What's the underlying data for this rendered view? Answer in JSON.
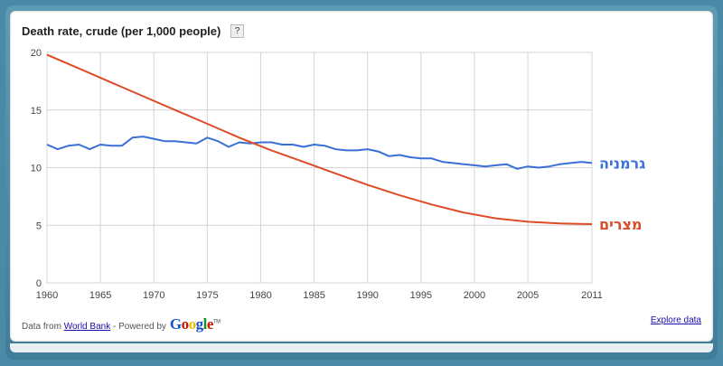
{
  "title": "Death rate, crude (per 1,000 people)",
  "help_label": "?",
  "footer": {
    "data_from": "Data from",
    "source_link": "World Bank",
    "powered_by": "- Powered by",
    "explore_link": "Explore data"
  },
  "chart_data": {
    "type": "line",
    "xlim": [
      1960,
      2011
    ],
    "ylim": [
      0,
      20
    ],
    "x_ticks": [
      1960,
      1965,
      1970,
      1975,
      1980,
      1985,
      1990,
      1995,
      2000,
      2005,
      2011
    ],
    "y_ticks": [
      0,
      5,
      10,
      15,
      20
    ],
    "grid": true,
    "legend": "series labels at right end of lines",
    "series": [
      {
        "name": "גרמניה",
        "color": "#3a6fd8",
        "x": [
          1960,
          1961,
          1962,
          1963,
          1964,
          1965,
          1966,
          1967,
          1968,
          1969,
          1970,
          1971,
          1972,
          1973,
          1974,
          1975,
          1976,
          1977,
          1978,
          1979,
          1980,
          1981,
          1982,
          1983,
          1984,
          1985,
          1986,
          1987,
          1988,
          1989,
          1990,
          1991,
          1992,
          1993,
          1994,
          1995,
          1996,
          1997,
          1998,
          1999,
          2000,
          2001,
          2002,
          2003,
          2004,
          2005,
          2006,
          2007,
          2008,
          2009,
          2010,
          2011
        ],
        "y": [
          12.0,
          11.6,
          11.9,
          12.0,
          11.6,
          12.0,
          11.9,
          11.9,
          12.6,
          12.7,
          12.5,
          12.3,
          12.3,
          12.2,
          12.1,
          12.6,
          12.3,
          11.8,
          12.2,
          12.1,
          12.2,
          12.2,
          12.0,
          12.0,
          11.8,
          12.0,
          11.9,
          11.6,
          11.5,
          11.5,
          11.6,
          11.4,
          11.0,
          11.1,
          10.9,
          10.8,
          10.8,
          10.5,
          10.4,
          10.3,
          10.2,
          10.1,
          10.2,
          10.3,
          9.9,
          10.1,
          10.0,
          10.1,
          10.3,
          10.4,
          10.5,
          10.4
        ]
      },
      {
        "name": "מצרים",
        "color": "#dd4b27",
        "x": [
          1960,
          1963,
          1966,
          1969,
          1972,
          1975,
          1978,
          1981,
          1984,
          1987,
          1990,
          1993,
          1996,
          1999,
          2002,
          2005,
          2008,
          2011
        ],
        "y": [
          19.8,
          18.6,
          17.4,
          16.2,
          15.0,
          13.8,
          12.6,
          11.5,
          10.5,
          9.5,
          8.5,
          7.6,
          6.8,
          6.1,
          5.6,
          5.3,
          5.15,
          5.1
        ]
      }
    ]
  }
}
